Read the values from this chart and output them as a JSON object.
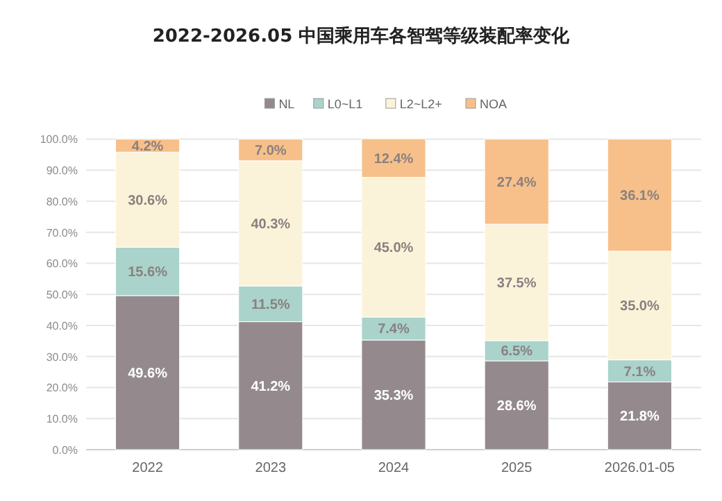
{
  "chart_data": {
    "type": "bar",
    "title": "2022-2026.05 中国乘用车各智驾等级装配率变化",
    "categories": [
      "2022",
      "2023",
      "2024",
      "2025",
      "2026.01-05"
    ],
    "stacked": true,
    "series": [
      {
        "name": "NL",
        "color": "#948a8d",
        "values": [
          49.6,
          41.2,
          35.3,
          28.6,
          21.8
        ],
        "value_labels": [
          "49.6%",
          "41.2%",
          "35.3%",
          "28.6%",
          "21.8%"
        ]
      },
      {
        "name": "L0~L1",
        "color": "#a9d3cb",
        "values": [
          15.6,
          11.5,
          7.4,
          6.5,
          7.1
        ],
        "value_labels": [
          "15.6%",
          "11.5%",
          "7.4%",
          "6.5%",
          "7.1%"
        ]
      },
      {
        "name": "L2~L2+",
        "color": "#fbf3d9",
        "values": [
          30.6,
          40.3,
          45.0,
          37.5,
          35.0
        ],
        "value_labels": [
          "30.6%",
          "40.3%",
          "45.0%",
          "37.5%",
          "35.0%"
        ]
      },
      {
        "name": "NOA",
        "color": "#f7c08a",
        "values": [
          4.2,
          7.0,
          12.4,
          27.4,
          36.1
        ],
        "value_labels": [
          "4.2%",
          "7.0%",
          "12.4%",
          "27.4%",
          "36.1%"
        ]
      }
    ],
    "ylim": [
      0,
      100.1
    ],
    "yticks": [
      {
        "value": 0,
        "label": "0.0%"
      },
      {
        "value": 10,
        "label": "10.0%"
      },
      {
        "value": 20,
        "label": "20.0%"
      },
      {
        "value": 30,
        "label": "30.0%"
      },
      {
        "value": 40,
        "label": "40.0%"
      },
      {
        "value": 50,
        "label": "50.0%"
      },
      {
        "value": 60,
        "label": "60.0%"
      },
      {
        "value": 70,
        "label": "70.0%"
      },
      {
        "value": 80,
        "label": "80.0%"
      },
      {
        "value": 90,
        "label": "90.0%"
      },
      {
        "value": 100,
        "label": "100.0%"
      }
    ],
    "grid": "y",
    "legend": "top"
  }
}
